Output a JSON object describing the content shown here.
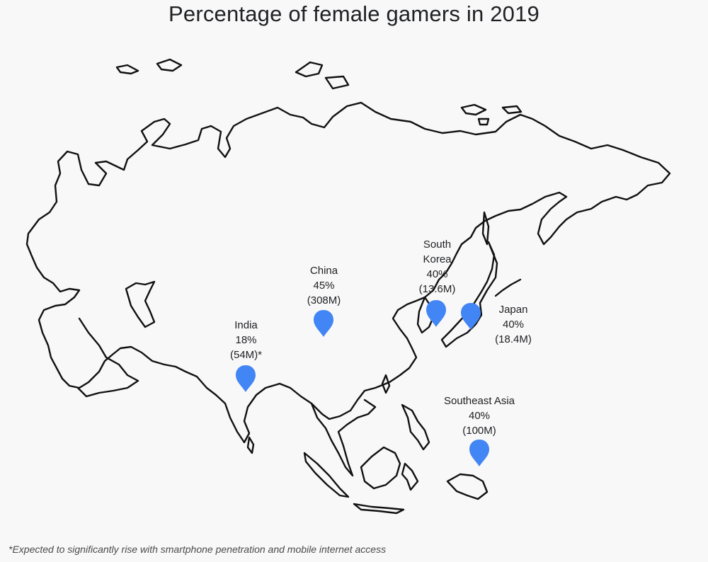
{
  "title": "Percentage of female gamers in 2019",
  "footnote": "*Expected to significantly rise with smartphone penetration and mobile internet access",
  "colors": {
    "pin": "#4285f4",
    "outline": "#111111",
    "background": "#f8f8f8"
  },
  "markers": [
    {
      "id": "india",
      "name": "India",
      "percent": "18%",
      "users": "(54M)*"
    },
    {
      "id": "china",
      "name": "China",
      "percent": "45%",
      "users": "(308M)"
    },
    {
      "id": "south_korea",
      "name": "South Korea",
      "percent": "40%",
      "users": "(13.6M)"
    },
    {
      "id": "japan",
      "name": "Japan",
      "percent": "40%",
      "users": "(18.4M)"
    },
    {
      "id": "southeast_asia",
      "name": "Southeast Asia",
      "percent": "40%",
      "users": "(100M)"
    }
  ]
}
